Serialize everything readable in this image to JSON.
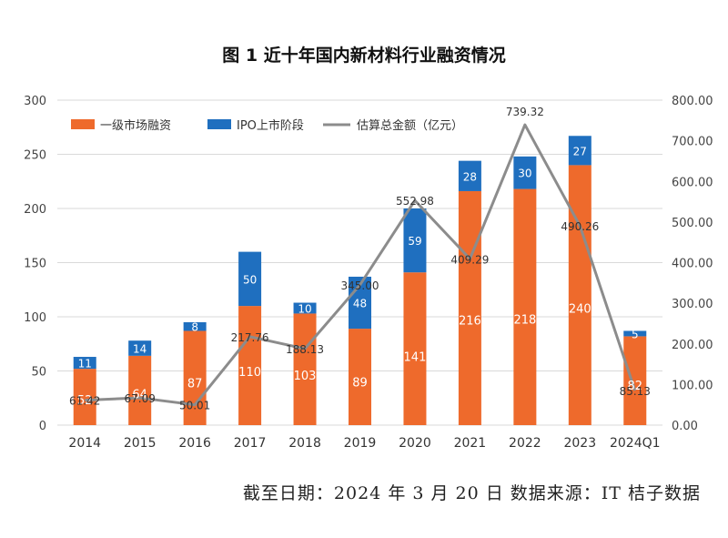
{
  "chart_data": {
    "type": "bar",
    "title": "图 1 近十年国内新材料行业融资情况",
    "categories": [
      "2014",
      "2015",
      "2016",
      "2017",
      "2018",
      "2019",
      "2020",
      "2021",
      "2022",
      "2023",
      "2024Q1"
    ],
    "series": [
      {
        "name": "一级市场融资",
        "type": "bar",
        "stack": "count",
        "axis": "left",
        "color": "#ee6a2c",
        "values": [
          52,
          64,
          87,
          110,
          103,
          89,
          141,
          216,
          218,
          240,
          82
        ]
      },
      {
        "name": "IPO上市阶段",
        "type": "bar",
        "stack": "count",
        "axis": "left",
        "color": "#1f6fbf",
        "values": [
          11,
          14,
          8,
          50,
          10,
          48,
          59,
          28,
          30,
          27,
          5
        ]
      },
      {
        "name": "估算总金额（亿元）",
        "type": "line",
        "axis": "right",
        "color": "#8c8c8c",
        "values": [
          61.42,
          67.09,
          50.01,
          217.76,
          188.13,
          345.0,
          552.98,
          409.29,
          739.32,
          490.26,
          85.13
        ]
      }
    ],
    "line_labels": [
      "61.42",
      "67.09",
      "50.01",
      "217.76",
      "188.13",
      "345.00",
      "552.98",
      "409.29",
      "739.32",
      "490.26",
      "85.13"
    ],
    "ylim_left": [
      0,
      300
    ],
    "yticks_left": [
      0,
      50,
      100,
      150,
      200,
      250,
      300
    ],
    "ylim_right": [
      0,
      800
    ],
    "yticks_right": [
      "0.00",
      "100.00",
      "200.00",
      "300.00",
      "400.00",
      "500.00",
      "600.00",
      "700.00",
      "800.00"
    ],
    "grid": true,
    "legend": "top-left"
  },
  "footer": "截至日期：2024 年 3 月 20 日 数据来源：IT 桔子数据"
}
